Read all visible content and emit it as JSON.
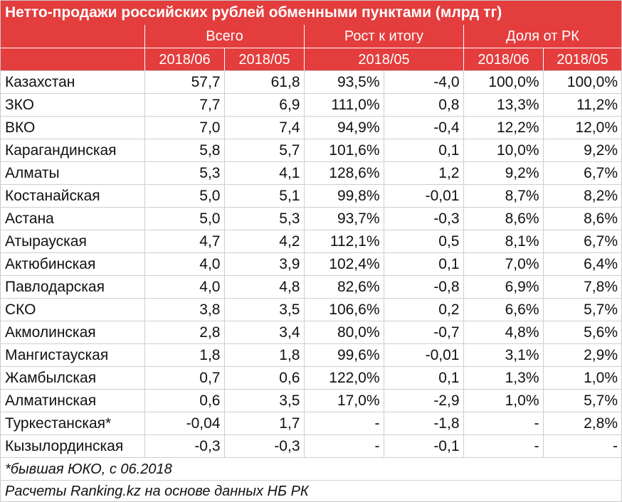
{
  "title": "Нетто-продажи российских рублей обменными пунктами (млрд тг)",
  "header": {
    "groups": [
      "Всего",
      "Рост к итогу",
      "Доля от РК"
    ],
    "sub": [
      "2018/06",
      "2018/05",
      "2018/05",
      "2018/06",
      "2018/05"
    ]
  },
  "rows": [
    {
      "name": "Казахстан",
      "total_06": "57,7",
      "total_05": "61,8",
      "growth_pct": "93,5%",
      "growth_abs": "-4,0",
      "share_06": "100,0%",
      "share_05": "100,0%"
    },
    {
      "name": "ЗКО",
      "total_06": "7,7",
      "total_05": "6,9",
      "growth_pct": "111,0%",
      "growth_abs": "0,8",
      "share_06": "13,3%",
      "share_05": "11,2%"
    },
    {
      "name": "ВКО",
      "total_06": "7,0",
      "total_05": "7,4",
      "growth_pct": "94,9%",
      "growth_abs": "-0,4",
      "share_06": "12,2%",
      "share_05": "12,0%"
    },
    {
      "name": "Карагандинская",
      "total_06": "5,8",
      "total_05": "5,7",
      "growth_pct": "101,6%",
      "growth_abs": "0,1",
      "share_06": "10,0%",
      "share_05": "9,2%"
    },
    {
      "name": "Алматы",
      "total_06": "5,3",
      "total_05": "4,1",
      "growth_pct": "128,6%",
      "growth_abs": "1,2",
      "share_06": "9,2%",
      "share_05": "6,7%"
    },
    {
      "name": "Костанайская",
      "total_06": "5,0",
      "total_05": "5,1",
      "growth_pct": "99,8%",
      "growth_abs": "-0,01",
      "share_06": "8,7%",
      "share_05": "8,2%"
    },
    {
      "name": "Астана",
      "total_06": "5,0",
      "total_05": "5,3",
      "growth_pct": "93,7%",
      "growth_abs": "-0,3",
      "share_06": "8,6%",
      "share_05": "8,6%"
    },
    {
      "name": "Атырауская",
      "total_06": "4,7",
      "total_05": "4,2",
      "growth_pct": "112,1%",
      "growth_abs": "0,5",
      "share_06": "8,1%",
      "share_05": "6,7%"
    },
    {
      "name": "Актюбинская",
      "total_06": "4,0",
      "total_05": "3,9",
      "growth_pct": "102,4%",
      "growth_abs": "0,1",
      "share_06": "7,0%",
      "share_05": "6,4%"
    },
    {
      "name": "Павлодарская",
      "total_06": "4,0",
      "total_05": "4,8",
      "growth_pct": "82,6%",
      "growth_abs": "-0,8",
      "share_06": "6,9%",
      "share_05": "7,8%"
    },
    {
      "name": "СКО",
      "total_06": "3,8",
      "total_05": "3,5",
      "growth_pct": "106,6%",
      "growth_abs": "0,2",
      "share_06": "6,6%",
      "share_05": "5,7%"
    },
    {
      "name": "Акмолинская",
      "total_06": "2,8",
      "total_05": "3,4",
      "growth_pct": "80,0%",
      "growth_abs": "-0,7",
      "share_06": "4,8%",
      "share_05": "5,6%"
    },
    {
      "name": "Мангистауская",
      "total_06": "1,8",
      "total_05": "1,8",
      "growth_pct": "99,6%",
      "growth_abs": "-0,01",
      "share_06": "3,1%",
      "share_05": "2,9%"
    },
    {
      "name": "Жамбылская",
      "total_06": "0,7",
      "total_05": "0,6",
      "growth_pct": "122,0%",
      "growth_abs": "0,1",
      "share_06": "1,3%",
      "share_05": "1,0%"
    },
    {
      "name": "Алматинская",
      "total_06": "0,6",
      "total_05": "3,5",
      "growth_pct": "17,0%",
      "growth_abs": "-2,9",
      "share_06": "1,0%",
      "share_05": "5,7%"
    },
    {
      "name": "Туркестанская*",
      "total_06": "-0,04",
      "total_05": "1,7",
      "growth_pct": "-",
      "growth_abs": "-1,8",
      "share_06": "-",
      "share_05": "2,8%"
    },
    {
      "name": "Кызылординская",
      "total_06": "-0,3",
      "total_05": "-0,3",
      "growth_pct": "-",
      "growth_abs": "-0,1",
      "share_06": "-",
      "share_05": "-"
    }
  ],
  "footnote": "*бывшая ЮКО, с 06.2018",
  "source": "Расчеты Ranking.kz на основе данных НБ РК"
}
